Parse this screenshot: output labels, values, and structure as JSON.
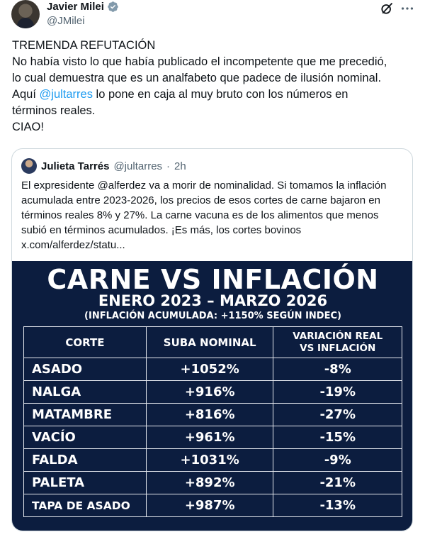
{
  "author": {
    "name": "Javier Milei",
    "handle": "@JMilei"
  },
  "tweet": {
    "lines": [
      "TREMENDA REFUTACIÓN",
      "No había visto lo que había publicado el incompetente que me precedió,",
      "lo cual demuestra que es un analfabeto que padece de ilusión nominal.",
      {
        "before": "Aquí ",
        "mention": "@jultarres",
        "after": " lo pone en caja al muy bruto con los números en"
      },
      "términos reales.",
      "CIAO!"
    ]
  },
  "quote": {
    "name": "Julieta Tarrés",
    "handle": "@jultarres",
    "separator": "·",
    "time": "2h",
    "lines": [
      "El expresidente @alferdez va a morir de nominalidad. Si tomamos la inflación",
      "acumulada entre 2023-2026, los precios de esos cortes de carne bajaron en",
      "términos reales 8% y 27%. La carne vacuna es de los alimentos que menos",
      "subió en términos acumulados. ¡Es más, los cortes bovinos",
      "x.com/alferdez/statu..."
    ]
  },
  "infographic": {
    "title": "CARNE VS INFLACIÓN",
    "subtitle": "ENERO 2023 – MARZO 2026",
    "note": "(INFLACIÓN ACUMULADA: +1150% SEGÚN INDEC)",
    "headers": {
      "corte": "CORTE",
      "nominal": "SUBA NOMINAL",
      "real_line1": "VARIACIÓN REAL",
      "real_line2": "VS INFLACIÓN"
    },
    "rows": [
      {
        "corte": "ASADO",
        "nominal": "+1052%",
        "real": "-8%"
      },
      {
        "corte": "NALGA",
        "nominal": "+916%",
        "real": "-19%"
      },
      {
        "corte": "MATAMBRE",
        "nominal": "+816%",
        "real": "-27%"
      },
      {
        "corte": "VACÍO",
        "nominal": "+961%",
        "real": "-15%"
      },
      {
        "corte": "FALDA",
        "nominal": "+1031%",
        "real": "-9%"
      },
      {
        "corte": "PALETA",
        "nominal": "+892%",
        "real": "-21%"
      },
      {
        "corte": "TAPA DE ASADO",
        "nominal": "+987%",
        "real": "-13%"
      }
    ]
  },
  "icons": {
    "verified": "verified-badge-icon",
    "grok": "grok-icon",
    "more": "more-icon"
  },
  "colors": {
    "link": "#1d9bf0",
    "secondary_text": "#536471",
    "infographic_bg": "#0c1d3f"
  }
}
